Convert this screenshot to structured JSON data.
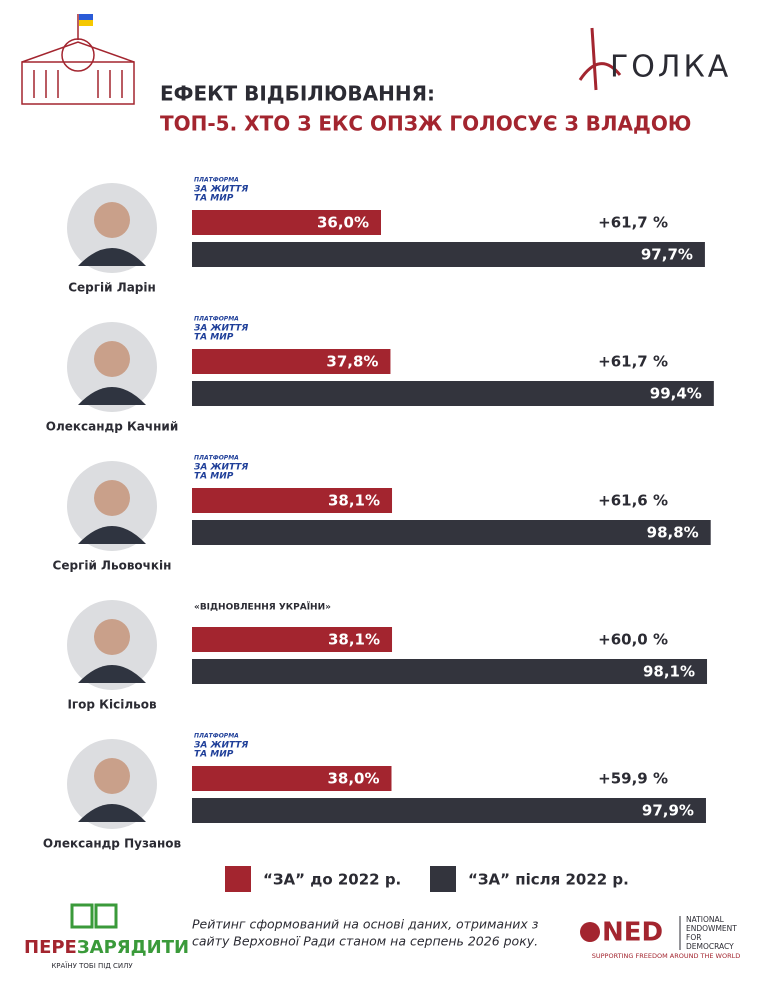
{
  "header": {
    "title": "ЕФЕКТ ВІДБІЛЮВАННЯ:",
    "subtitle": "ТОП-5. ХТО З ЕКС ОПЗЖ ГОЛОСУЄ З ВЛАДОЮ",
    "brand": "ГОЛКА"
  },
  "chart_data": {
    "type": "bar",
    "orientation": "horizontal",
    "xlim": [
      0,
      100
    ],
    "categories": [
      "Сергій Ларін",
      "Олександр Качний",
      "Сергій Льовочкін",
      "Ігор Кісільов",
      "Олександр Пузанов"
    ],
    "parties": [
      [
        "ПЛАТФОРМА",
        "ЗА ЖИТТЯ",
        "ТА МИР"
      ],
      [
        "ПЛАТФОРМА",
        "ЗА ЖИТТЯ",
        "ТА МИР"
      ],
      [
        "ПЛАТФОРМА",
        "ЗА ЖИТТЯ",
        "ТА МИР"
      ],
      [
        "«ВІДНОВЛЕННЯ УКРАЇНИ»"
      ],
      [
        "ПЛАТФОРМА",
        "ЗА ЖИТТЯ",
        "ТА МИР"
      ]
    ],
    "changes": [
      "+61,7 %",
      "+61,7 %",
      "+61,6 %",
      "+60,0 %",
      "+59,9 %"
    ],
    "series": [
      {
        "name": "“ЗА” до 2022 р.",
        "color": "#a3252f",
        "values": [
          36.0,
          37.8,
          38.1,
          38.1,
          38.0
        ],
        "value_labels": [
          "36,0%",
          "37,8%",
          "38,1%",
          "38,1%",
          "38,0%"
        ]
      },
      {
        "name": "“ЗА” після 2022 р.",
        "color": "#33343d",
        "values": [
          97.7,
          99.4,
          98.8,
          98.1,
          97.9
        ],
        "value_labels": [
          "97,7%",
          "99,4%",
          "98,8%",
          "98,1%",
          "97,9%"
        ]
      }
    ]
  },
  "footer": {
    "note": [
      "Рейтинг сформований на основі даних, отриманих з",
      "сайту Верховної Ради станом на серпень 2026 року."
    ],
    "logo_parts": [
      "ПЕРЕ",
      "ЗАРЯДИТИ"
    ],
    "logo_tagline": "КРАЇНУ ТОБІ ПІД СИЛУ",
    "ned": "NED",
    "ned_lines": [
      "NATIONAL",
      "ENDOWMENT",
      "FOR",
      "DEMOCRACY"
    ],
    "ned_tagline": "SUPPORTING FREEDOM AROUND THE WORLD"
  }
}
